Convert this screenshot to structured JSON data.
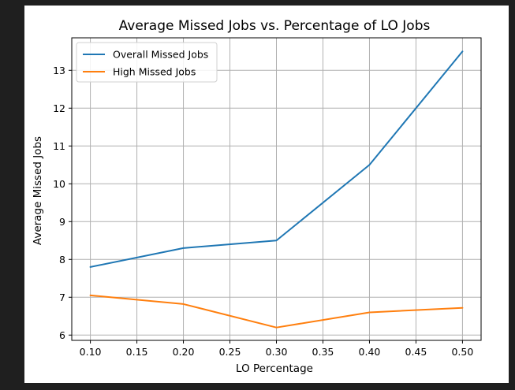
{
  "chart_data": {
    "type": "line",
    "title": "Average Missed Jobs vs. Percentage of LO Jobs",
    "xlabel": "LO Percentage",
    "ylabel": "Average Missed Jobs",
    "x": [
      0.1,
      0.2,
      0.3,
      0.4,
      0.5
    ],
    "xlim": [
      0.08,
      0.52
    ],
    "ylim": [
      5.86,
      13.86
    ],
    "x_ticks": [
      "0.10",
      "0.15",
      "0.20",
      "0.25",
      "0.30",
      "0.35",
      "0.40",
      "0.45",
      "0.50"
    ],
    "y_ticks": [
      "6",
      "7",
      "8",
      "9",
      "10",
      "11",
      "12",
      "13"
    ],
    "grid": true,
    "legend_position": "top-left",
    "series": [
      {
        "name": "Overall Missed Jobs",
        "color": "#1f77b4",
        "values": [
          7.8,
          8.3,
          8.5,
          10.5,
          13.5
        ]
      },
      {
        "name": "High Missed Jobs",
        "color": "#ff7f0e",
        "values": [
          7.05,
          6.82,
          6.2,
          6.6,
          6.72
        ]
      }
    ]
  }
}
